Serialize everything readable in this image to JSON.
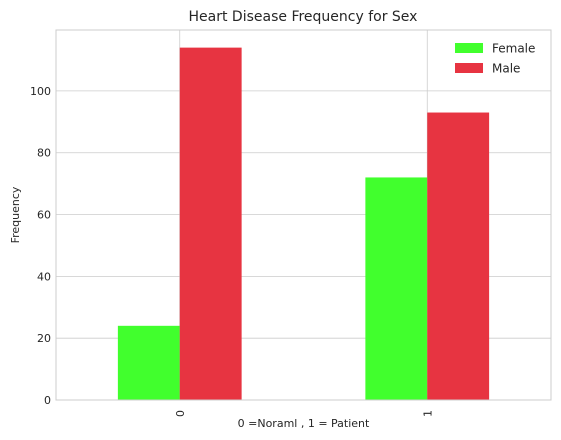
{
  "chart_data": {
    "type": "bar",
    "title": "Heart Disease Frequency for Sex",
    "xlabel": "0 =Noraml , 1 = Patient",
    "ylabel": "Frequency",
    "categories": [
      "0",
      "1"
    ],
    "series": [
      {
        "name": "Female",
        "values": [
          24,
          72
        ],
        "color": "#41ff2d"
      },
      {
        "name": "Male",
        "values": [
          114,
          93
        ],
        "color": "#e73441"
      }
    ],
    "ylim": [
      0,
      119.7
    ],
    "yticks": [
      0,
      20,
      40,
      60,
      80,
      100
    ],
    "grid": true,
    "legend": "top-right",
    "xtick_rotation": 90
  }
}
